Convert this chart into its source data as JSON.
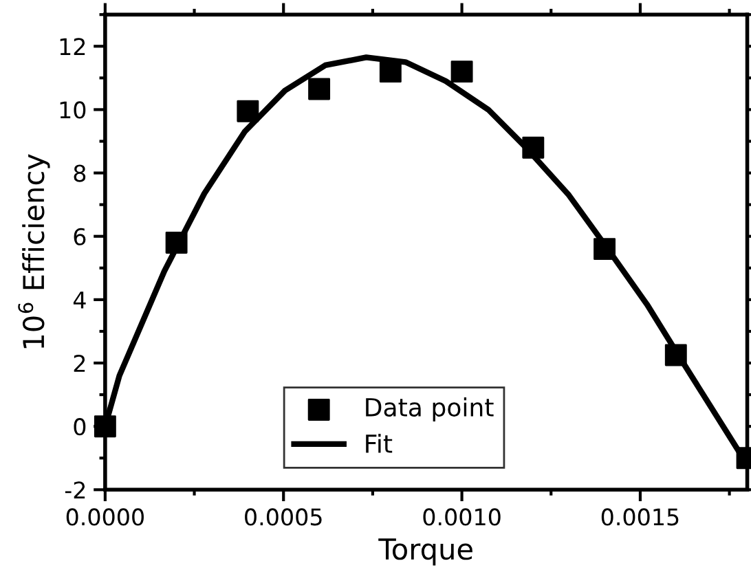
{
  "chart_data": {
    "type": "scatter",
    "xlabel": "Torque",
    "ylabel": "10$^{6}$ Efficiency",
    "xlim": [
      0,
      0.0018
    ],
    "ylim": [
      -2,
      13
    ],
    "xticks": [
      {
        "value": 0,
        "label": "0.0000"
      },
      {
        "value": 0.0005,
        "label": "0.0005"
      },
      {
        "value": 0.001,
        "label": "0.0010"
      },
      {
        "value": 0.0015,
        "label": "0.0015"
      }
    ],
    "yticks": [
      -2,
      0,
      2,
      4,
      6,
      8,
      10,
      12
    ],
    "legend": "bottom",
    "grid": false,
    "series": [
      {
        "name": "Data point",
        "color": "#000000",
        "marker": "square",
        "x": [
          0,
          0.0002,
          0.0004,
          0.0006,
          0.0008,
          0.001,
          0.0012,
          0.0014,
          0.0016,
          0.0018
        ],
        "values": [
          0,
          5.8,
          9.95,
          10.65,
          11.2,
          11.2,
          8.8,
          5.6,
          2.25,
          -1.0
        ]
      },
      {
        "name": "Fit",
        "type": "line",
        "color": "#000000",
        "marker": "none",
        "line_style": "solid",
        "x": [
          0,
          4e-05,
          0.000166,
          0.000278,
          0.000391,
          0.000504,
          0.000617,
          0.000732,
          0.000842,
          0.000955,
          0.001074,
          0.00118,
          0.0013,
          0.001406,
          0.001519,
          0.001618,
          0.001777,
          0.0018
        ],
        "values": [
          0,
          1.6,
          4.9,
          7.35,
          9.3,
          10.6,
          11.4,
          11.65,
          11.5,
          10.9,
          10.0,
          8.8,
          7.3,
          5.65,
          3.85,
          2.05,
          -0.8,
          -1.1
        ]
      }
    ]
  }
}
